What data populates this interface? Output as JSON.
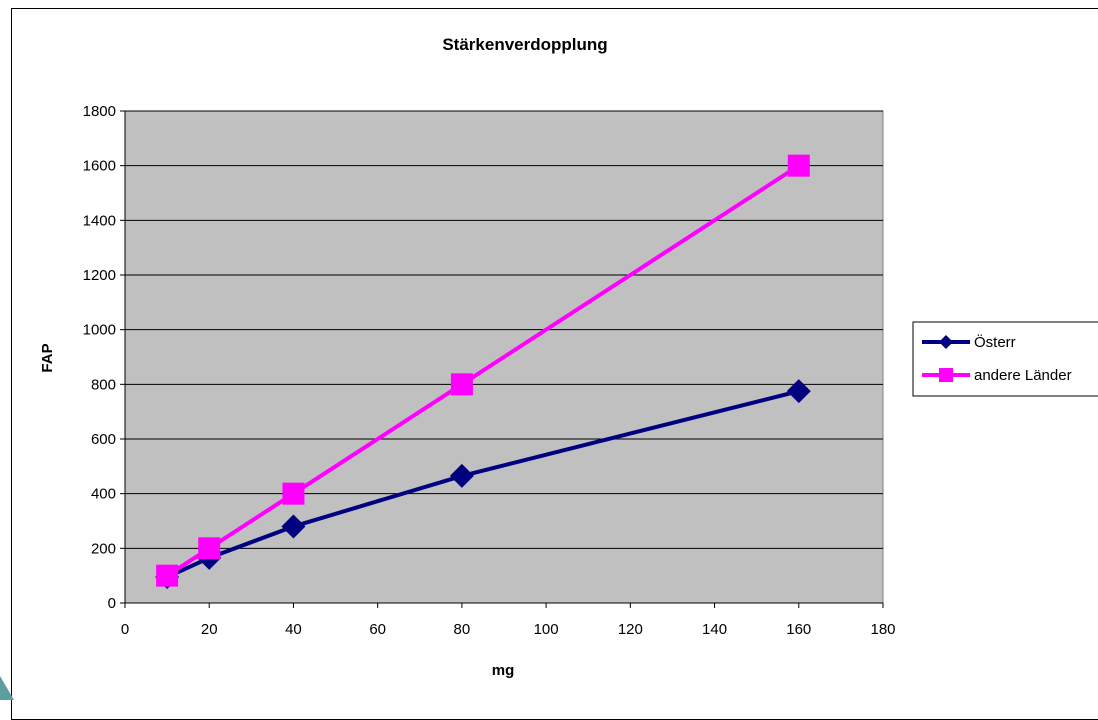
{
  "chart_data": {
    "type": "line",
    "title": "Stärkenverdopplung",
    "xlabel": "mg",
    "ylabel": "FAP",
    "xlim": [
      0,
      180
    ],
    "ylim": [
      0,
      1800
    ],
    "x_ticks": [
      "0",
      "20",
      "40",
      "60",
      "80",
      "100",
      "120",
      "140",
      "160",
      "180"
    ],
    "y_ticks": [
      "0",
      "200",
      "400",
      "600",
      "800",
      "1000",
      "1200",
      "1400",
      "1600",
      "1800"
    ],
    "grid": "horizontal",
    "plot_background": "#c0c0c0",
    "legend_position": "right",
    "series": [
      {
        "name": "Österr",
        "color": "#000080",
        "marker": "diamond",
        "x": [
          10,
          20,
          40,
          80,
          160
        ],
        "y": [
          95,
          165,
          280,
          465,
          775
        ]
      },
      {
        "name": "andere Länder",
        "color": "#ff00ff",
        "marker": "square",
        "x": [
          10,
          20,
          40,
          80,
          160
        ],
        "y": [
          100,
          200,
          400,
          800,
          1600
        ]
      }
    ]
  }
}
